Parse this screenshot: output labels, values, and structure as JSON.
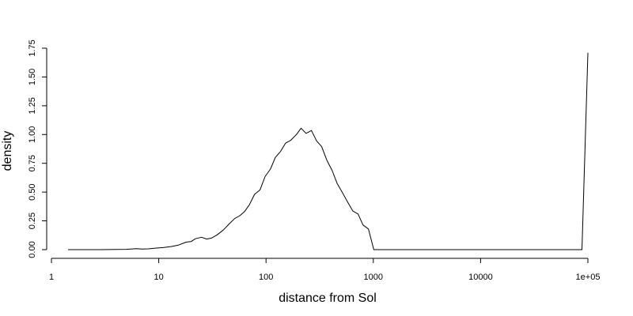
{
  "chart_data": {
    "type": "line",
    "title": "",
    "xlabel": "distance from Sol",
    "ylabel": "density",
    "x_scale": "log10",
    "xlim": [
      1,
      100000
    ],
    "ylim": [
      0,
      1.75
    ],
    "grid": false,
    "legend": "none",
    "line_color": "#000000",
    "x_ticks": [
      {
        "value": 1,
        "label": "1"
      },
      {
        "value": 10,
        "label": "10"
      },
      {
        "value": 100,
        "label": "100"
      },
      {
        "value": 1000,
        "label": "1000"
      },
      {
        "value": 10000,
        "label": "10000"
      },
      {
        "value": 100000,
        "label": "1e+05"
      }
    ],
    "y_ticks": [
      {
        "value": 0,
        "label": "0.00"
      },
      {
        "value": 0.25,
        "label": "0.25"
      },
      {
        "value": 0.5,
        "label": "0.50"
      },
      {
        "value": 0.75,
        "label": "0.75"
      },
      {
        "value": 1.0,
        "label": "1.00"
      },
      {
        "value": 1.25,
        "label": "1.25"
      },
      {
        "value": 1.5,
        "label": "1.50"
      },
      {
        "value": 1.75,
        "label": "1.75"
      }
    ],
    "series": [
      {
        "points": [
          [
            1.43,
            0.0
          ],
          [
            2.7,
            0.0
          ],
          [
            4.0,
            0.002
          ],
          [
            5.0,
            0.003
          ],
          [
            6.2,
            0.008
          ],
          [
            7.0,
            0.005
          ],
          [
            8.0,
            0.007
          ],
          [
            9.3,
            0.013
          ],
          [
            11.0,
            0.018
          ],
          [
            13.0,
            0.027
          ],
          [
            15.3,
            0.04
          ],
          [
            18.0,
            0.065
          ],
          [
            20.0,
            0.07
          ],
          [
            22.0,
            0.095
          ],
          [
            25.0,
            0.108
          ],
          [
            28.0,
            0.092
          ],
          [
            31.0,
            0.1
          ],
          [
            35.0,
            0.128
          ],
          [
            40.0,
            0.17
          ],
          [
            45.0,
            0.22
          ],
          [
            51.0,
            0.27
          ],
          [
            57.0,
            0.295
          ],
          [
            63.0,
            0.33
          ],
          [
            70.0,
            0.39
          ],
          [
            78.0,
            0.48
          ],
          [
            88.0,
            0.52
          ],
          [
            98.0,
            0.635
          ],
          [
            110.0,
            0.7
          ],
          [
            122.0,
            0.8
          ],
          [
            137.0,
            0.855
          ],
          [
            152.0,
            0.925
          ],
          [
            170.0,
            0.95
          ],
          [
            192.0,
            1.0
          ],
          [
            212.0,
            1.055
          ],
          [
            236.0,
            1.01
          ],
          [
            265.0,
            1.035
          ],
          [
            296.0,
            0.945
          ],
          [
            330.0,
            0.895
          ],
          [
            370.0,
            0.775
          ],
          [
            412.0,
            0.69
          ],
          [
            460.0,
            0.575
          ],
          [
            516.0,
            0.495
          ],
          [
            575.0,
            0.415
          ],
          [
            645.0,
            0.335
          ],
          [
            720.0,
            0.31
          ],
          [
            800.0,
            0.215
          ],
          [
            900.0,
            0.18
          ],
          [
            1010.0,
            0.0
          ],
          [
            88000.0,
            0.0
          ],
          [
            100000.0,
            1.71
          ]
        ]
      }
    ]
  }
}
